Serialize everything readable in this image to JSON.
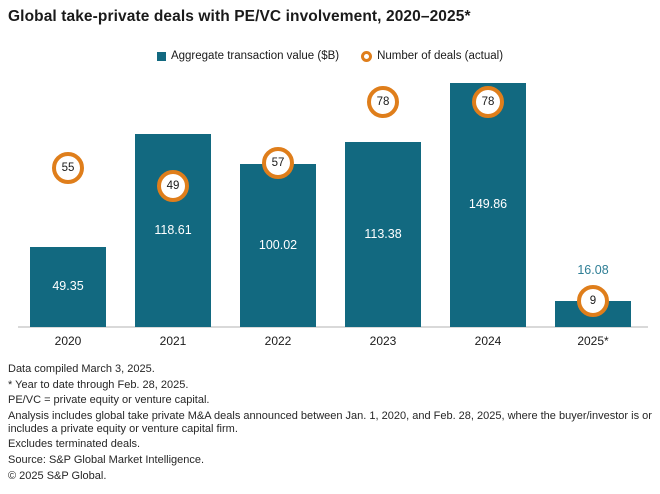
{
  "title": "Global take-private deals with PE/VC involvement, 2020–2025*",
  "legend": {
    "value_label": "Aggregate transaction value ($B)",
    "deals_label": "Number of deals (actual)"
  },
  "colors": {
    "bar_teal": "#126980",
    "circle_orange": "#df7e1b",
    "outside_label_teal": "#2e7e95",
    "axis_line_gray": "#d9d9d9"
  },
  "chart_data": {
    "type": "bar",
    "categories": [
      "2020",
      "2021",
      "2022",
      "2023",
      "2024",
      "2025*"
    ],
    "series": [
      {
        "name": "Aggregate transaction value ($B)",
        "values": [
          49.35,
          118.61,
          100.02,
          113.38,
          149.86,
          16.08
        ]
      },
      {
        "name": "Number of deals (actual)",
        "values": [
          55,
          49,
          57,
          78,
          78,
          9
        ]
      }
    ],
    "value_labels": [
      "49.35",
      "118.61",
      "100.02",
      "113.38",
      "149.86",
      "16.08"
    ],
    "deal_labels": [
      "55",
      "49",
      "57",
      "78",
      "78",
      "9"
    ],
    "title": "Global take-private deals with PE/VC involvement, 2020–2025*",
    "xlabel": "",
    "ylabel": "Aggregate transaction value ($B)",
    "ylim": [
      0,
      160
    ],
    "grid": false,
    "legend_position": "top-center"
  },
  "footnotes": [
    "Data compiled March 3, 2025.",
    "* Year to date through Feb. 28, 2025.",
    "PE/VC = private equity or venture capital.",
    "Analysis includes global take private M&A deals announced between Jan. 1, 2020, and Feb. 28, 2025, where the buyer/investor is or includes a private equity or venture capital firm.",
    "Excludes terminated deals.",
    "Source: S&P Global Market Intelligence.",
    "© 2025 S&P Global."
  ]
}
